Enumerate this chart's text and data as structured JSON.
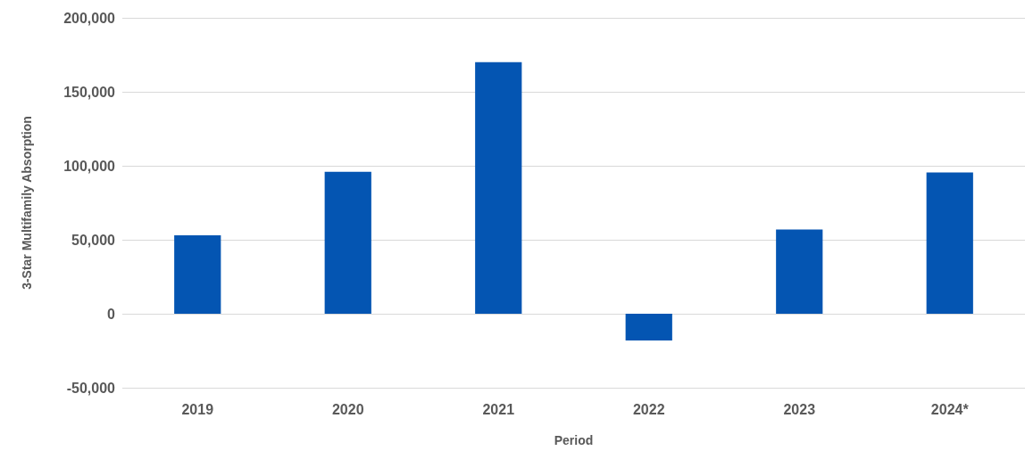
{
  "chart_data": {
    "type": "bar",
    "xlabel": "Period",
    "ylabel": "3-Star Multifamily Absorption",
    "categories": [
      "2019",
      "2020",
      "2021",
      "2022",
      "2023",
      "2024*"
    ],
    "values": [
      53000,
      96000,
      170000,
      -18000,
      57000,
      95500
    ],
    "color": "#0455b2",
    "ylim": [
      -50000,
      200000
    ],
    "yticks": [
      {
        "value": -50000,
        "label": "-50,000"
      },
      0,
      {
        "value": 50000,
        "label": "50,000"
      },
      {
        "value": 100000,
        "label": "100,000"
      },
      {
        "value": 150000,
        "label": "150,000"
      },
      {
        "value": 200000,
        "label": "200,000"
      }
    ],
    "grid": "y"
  }
}
